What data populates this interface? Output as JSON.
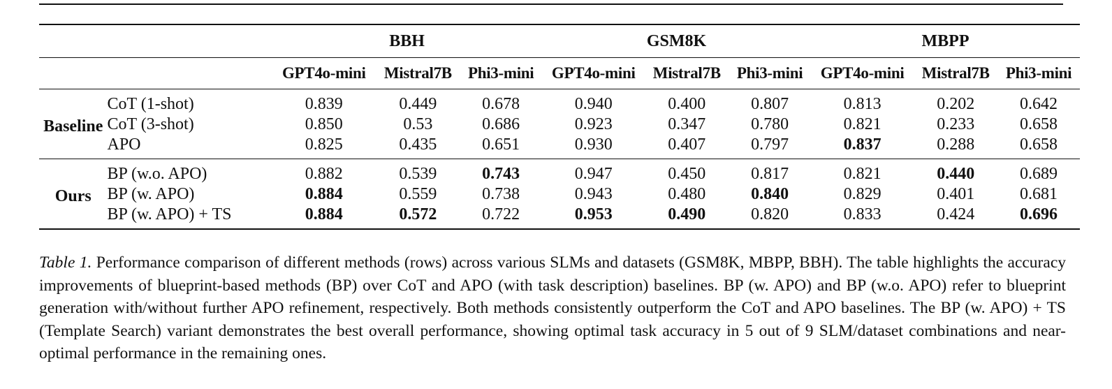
{
  "table": {
    "group_headers": [
      "BBH",
      "GSM8K",
      "MBPP"
    ],
    "model_headers": [
      "GPT4o-mini",
      "Mistral7B",
      "Phi3-mini",
      "GPT4o-mini",
      "Mistral7B",
      "Phi3-mini",
      "GPT4o-mini",
      "Mistral7B",
      "Phi3-mini"
    ],
    "blocks": [
      {
        "label": "Baseline",
        "rows": [
          {
            "method": "CoT (1-shot)",
            "values": [
              "0.839",
              "0.449",
              "0.678",
              "0.940",
              "0.400",
              "0.807",
              "0.813",
              "0.202",
              "0.642"
            ],
            "bold": []
          },
          {
            "method": "CoT (3-shot)",
            "values": [
              "0.850",
              "0.53",
              "0.686",
              "0.923",
              "0.347",
              "0.780",
              "0.821",
              "0.233",
              "0.658"
            ],
            "bold": []
          },
          {
            "method": "APO",
            "values": [
              "0.825",
              "0.435",
              "0.651",
              "0.930",
              "0.407",
              "0.797",
              "0.837",
              "0.288",
              "0.658"
            ],
            "bold": [
              6
            ]
          }
        ]
      },
      {
        "label": "Ours",
        "rows": [
          {
            "method": "BP (w.o. APO)",
            "values": [
              "0.882",
              "0.539",
              "0.743",
              "0.947",
              "0.450",
              "0.817",
              "0.821",
              "0.440",
              "0.689"
            ],
            "bold": [
              2,
              7
            ]
          },
          {
            "method": "BP (w. APO)",
            "values": [
              "0.884",
              "0.559",
              "0.738",
              "0.943",
              "0.480",
              "0.840",
              "0.829",
              "0.401",
              "0.681"
            ],
            "bold": [
              0,
              5
            ]
          },
          {
            "method": "BP (w. APO) + TS",
            "values": [
              "0.884",
              "0.572",
              "0.722",
              "0.953",
              "0.490",
              "0.820",
              "0.833",
              "0.424",
              "0.696"
            ],
            "bold": [
              0,
              1,
              3,
              4,
              8
            ]
          }
        ]
      }
    ]
  },
  "caption": {
    "label": "Table 1.",
    "text": "Performance comparison of different methods (rows) across various SLMs and datasets (GSM8K, MBPP, BBH). The table highlights the accuracy improvements of blueprint-based methods (BP) over CoT and APO (with task description) baselines. BP (w. APO) and BP (w.o. APO) refer to blueprint generation with/without further APO refinement, respectively. Both methods consistently outperform the CoT and APO baselines. The BP (w. APO) + TS (Template Search) variant demonstrates the best overall performance, showing optimal task accuracy in 5 out of 9 SLM/dataset combinations and near-optimal performance in the remaining ones."
  }
}
